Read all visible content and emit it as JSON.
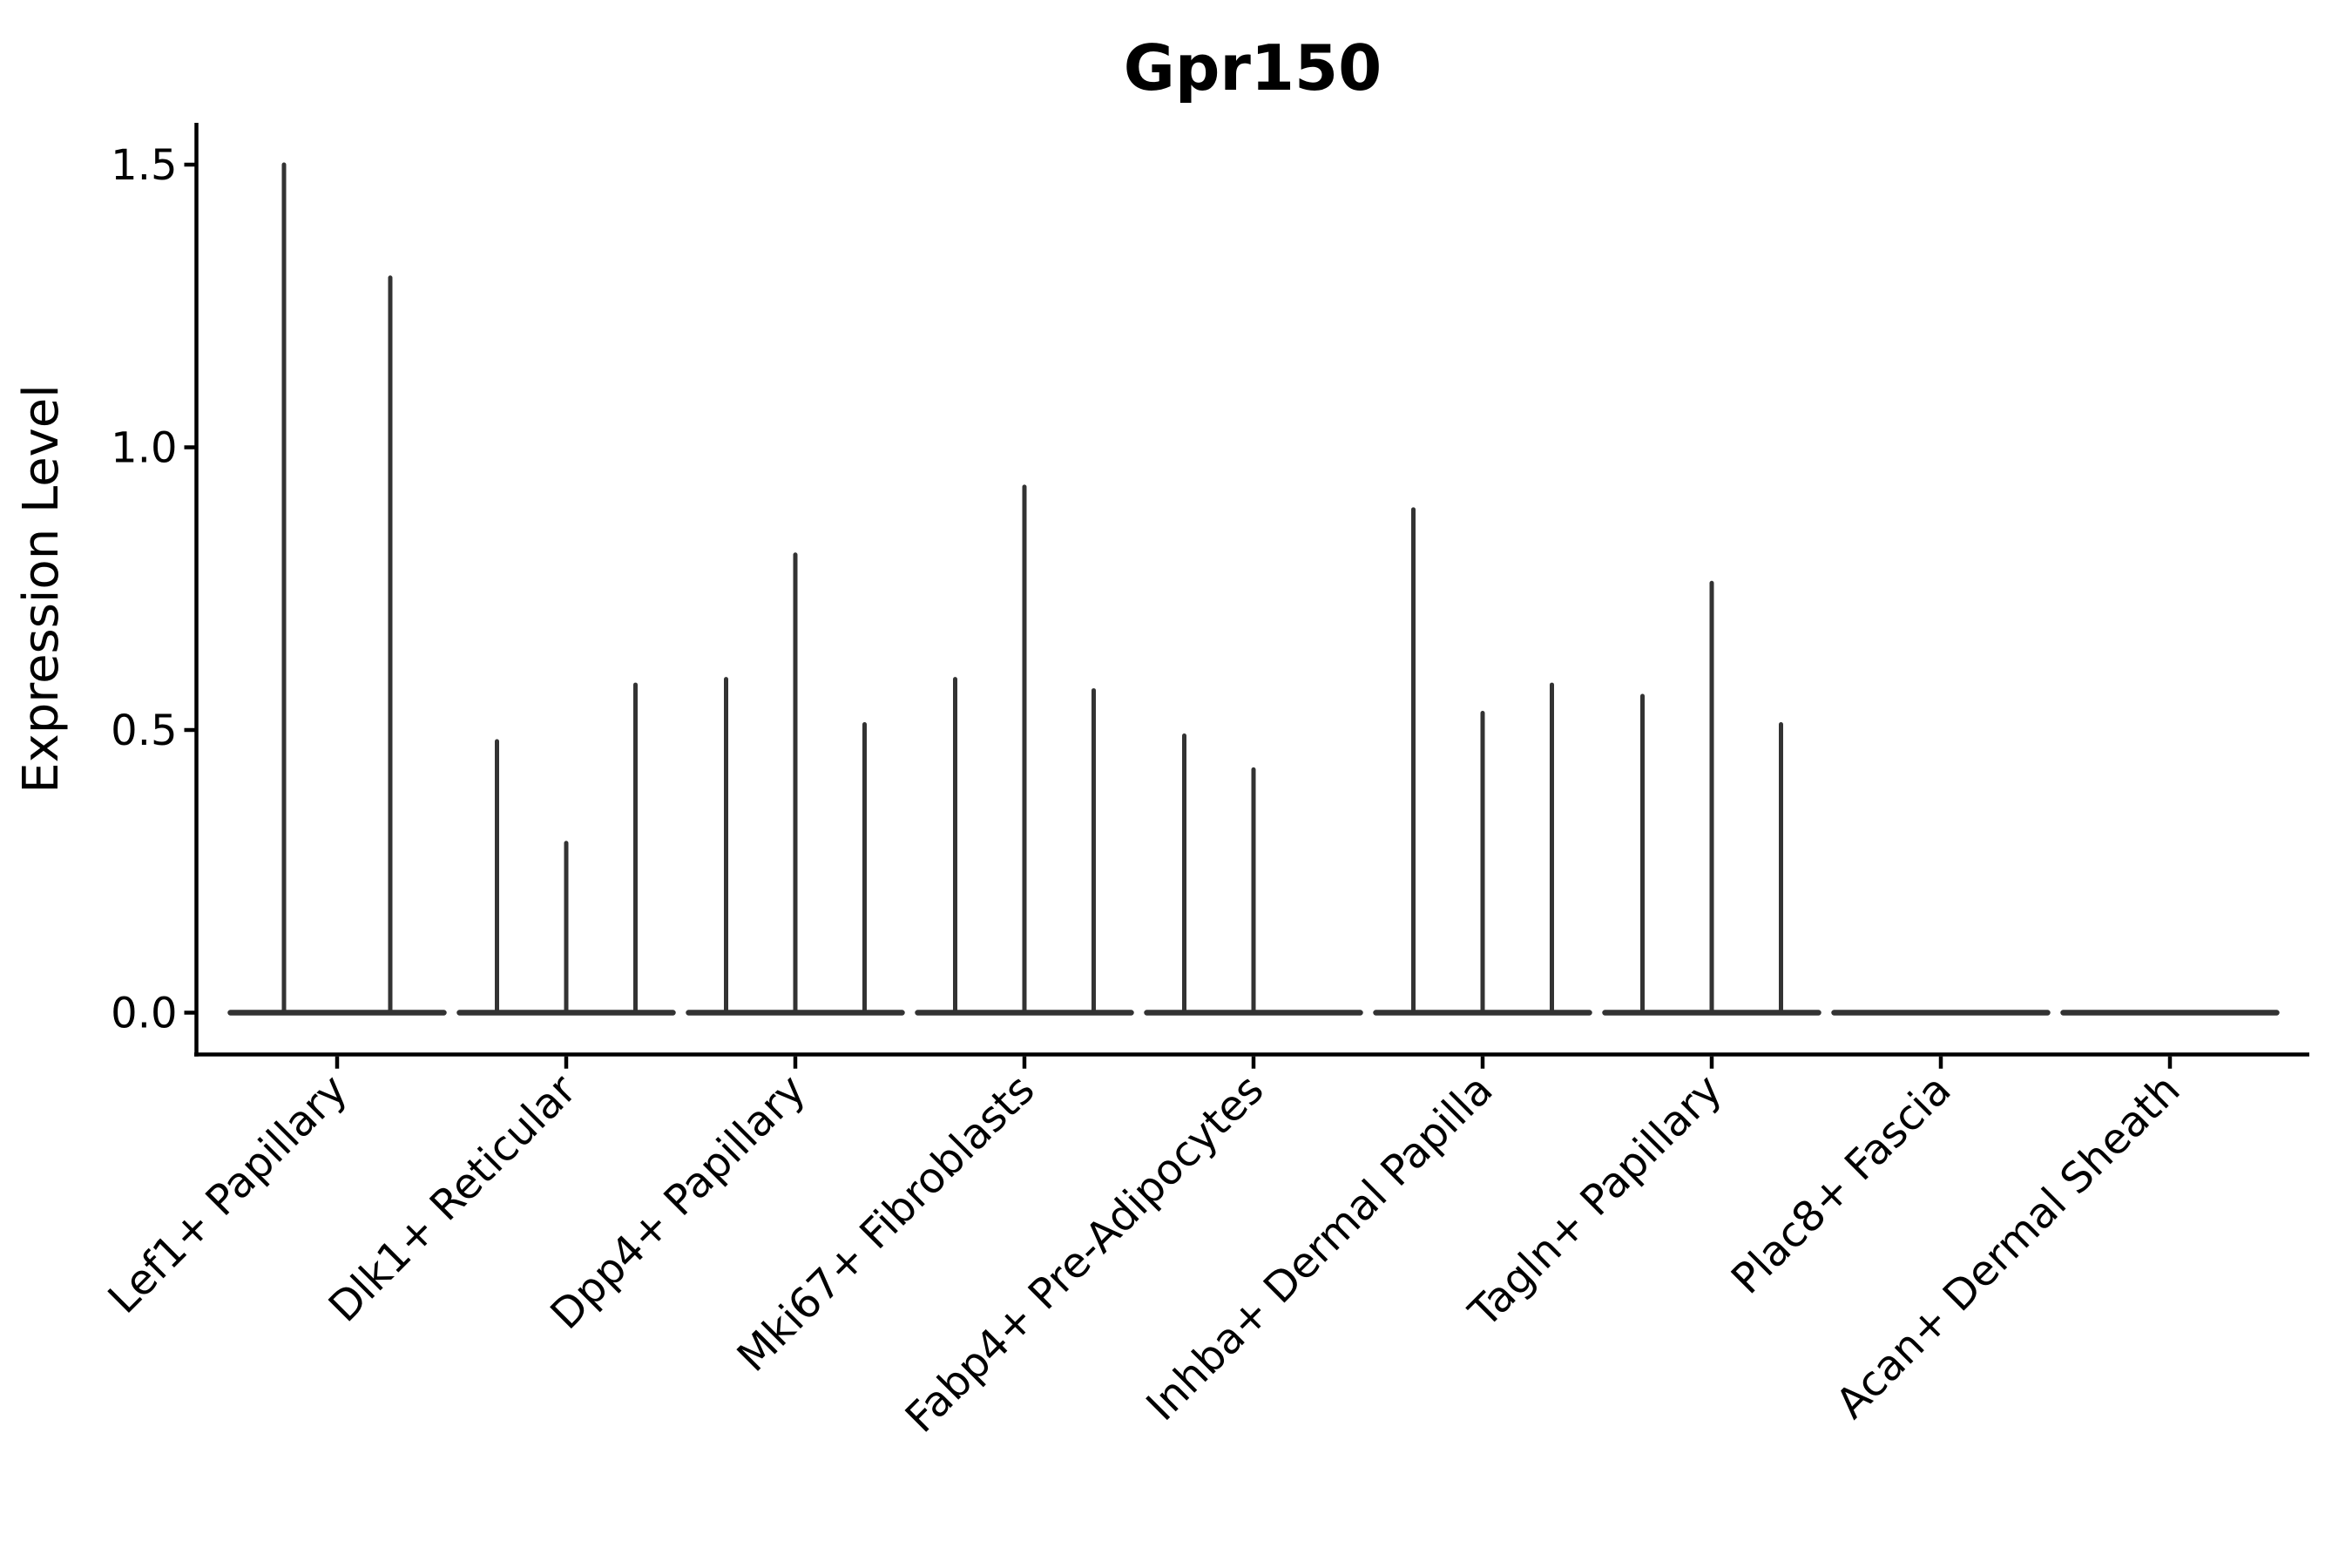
{
  "title": "Gpr150",
  "y_axis_label": "Expression Level",
  "y_tick_labels": [
    "0.0",
    "0.5",
    "1.0",
    "1.5"
  ],
  "categories": [
    "Lef1+ Papillary",
    "Dlk1+ Reticular",
    "Dpp4+ Papillary",
    "Mki67+ Fibroblasts",
    "Fabp4+ Pre-Adipocytes",
    "Inhba+ Dermal Papilla",
    "Tagln+ Papillary",
    "Plac8+ Fascia",
    "Acan+ Dermal Sheath"
  ],
  "chart_data": {
    "type": "violin",
    "title": "Gpr150",
    "xlabel": "",
    "ylabel": "Expression Level",
    "yticks": [
      0.0,
      0.5,
      1.0,
      1.5
    ],
    "ylim": [
      -0.074,
      1.575
    ],
    "grid": false,
    "legend": "none",
    "description": "Violin plot of Gpr150 expression per fibroblast cell type; violins are flat at zero with thin density spikes reaching each sub-violin maximum.",
    "categories": [
      "Lef1+ Papillary",
      "Dlk1+ Reticular",
      "Dpp4+ Papillary",
      "Mki67+ Fibroblasts",
      "Fabp4+ Pre-Adipocytes",
      "Inhba+ Dermal Papilla",
      "Tagln+ Papillary",
      "Plac8+ Fascia",
      "Acan+ Dermal Sheath"
    ],
    "groups": [
      {
        "category": "Lef1+ Papillary",
        "violins": [
          {
            "slot": "half-left",
            "max": 1.5
          },
          {
            "slot": "half-right",
            "max": 1.3
          }
        ]
      },
      {
        "category": "Dlk1+ Reticular",
        "violins": [
          {
            "slot": "left",
            "max": 0.48
          },
          {
            "slot": "center",
            "max": 0.3
          },
          {
            "slot": "right",
            "max": 0.58
          }
        ]
      },
      {
        "category": "Dpp4+ Papillary",
        "violins": [
          {
            "slot": "left",
            "max": 0.59
          },
          {
            "slot": "center",
            "max": 0.81
          },
          {
            "slot": "right",
            "max": 0.51
          }
        ]
      },
      {
        "category": "Mki67+ Fibroblasts",
        "violins": [
          {
            "slot": "left",
            "max": 0.59
          },
          {
            "slot": "center",
            "max": 0.93
          },
          {
            "slot": "right",
            "max": 0.57
          }
        ]
      },
      {
        "category": "Fabp4+ Pre-Adipocytes",
        "violins": [
          {
            "slot": "left",
            "max": 0.49
          },
          {
            "slot": "center",
            "max": 0.43
          },
          {
            "slot": "right",
            "max": 0.0
          }
        ]
      },
      {
        "category": "Inhba+ Dermal Papilla",
        "violins": [
          {
            "slot": "left",
            "max": 0.89
          },
          {
            "slot": "center",
            "max": 0.53
          },
          {
            "slot": "right",
            "max": 0.58
          }
        ]
      },
      {
        "category": "Tagln+ Papillary",
        "violins": [
          {
            "slot": "left",
            "max": 0.56
          },
          {
            "slot": "center",
            "max": 0.76
          },
          {
            "slot": "right",
            "max": 0.51
          }
        ]
      },
      {
        "category": "Plac8+ Fascia",
        "violins": [
          {
            "slot": "left",
            "max": 0.0
          },
          {
            "slot": "center",
            "max": 0.0
          },
          {
            "slot": "right",
            "max": 0.0
          }
        ]
      },
      {
        "category": "Acan+ Dermal Sheath",
        "violins": [
          {
            "slot": "left",
            "max": 0.0
          },
          {
            "slot": "center",
            "max": 0.0
          },
          {
            "slot": "right",
            "max": 0.0
          }
        ]
      }
    ],
    "colors": {
      "violin": "#333333",
      "axis": "#000000",
      "background": "#ffffff"
    }
  }
}
